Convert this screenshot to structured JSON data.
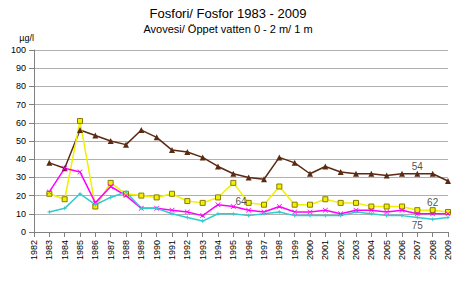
{
  "chart_data": {
    "type": "line",
    "title": "Fosfori/ Fosfor 1983 - 2009",
    "subtitle": "Avovesi/ Öppet vatten 0 - 2 m/ 1 m",
    "y_label": "µg/l",
    "x": [
      1983,
      1984,
      1985,
      1986,
      1987,
      1988,
      1989,
      1990,
      1991,
      1992,
      1993,
      1994,
      1995,
      1996,
      1997,
      1998,
      1999,
      2000,
      2001,
      2002,
      2003,
      2004,
      2005,
      2006,
      2007,
      2008,
      2009
    ],
    "xlim": [
      1982,
      2009
    ],
    "xticks": [
      1982,
      1983,
      1984,
      1985,
      1986,
      1987,
      1988,
      1989,
      1990,
      1991,
      1992,
      1993,
      1994,
      1995,
      1996,
      1997,
      1998,
      1999,
      2000,
      2001,
      2002,
      2003,
      2004,
      2005,
      2006,
      2007,
      2008,
      2009
    ],
    "ylim": [
      0,
      100
    ],
    "yticks": [
      0,
      10,
      20,
      30,
      40,
      50,
      60,
      70,
      80,
      90,
      100
    ],
    "grid": true,
    "series": [
      {
        "color": "#5a2a12",
        "marker": "triangle",
        "values": [
          38,
          35,
          56,
          53,
          50,
          48,
          56,
          52,
          45,
          44,
          41,
          36,
          32,
          30,
          29,
          41,
          38,
          32,
          36,
          33,
          32,
          32,
          31,
          32,
          32,
          32,
          28
        ]
      },
      {
        "color": "#f0f000",
        "marker": "square",
        "values": [
          21,
          18,
          61,
          14,
          27,
          21,
          20,
          19,
          21,
          17,
          16,
          19,
          27,
          16,
          15,
          25,
          15,
          15,
          18,
          16,
          16,
          14,
          14,
          14,
          12,
          12,
          11
        ]
      },
      {
        "color": "#ff00ff",
        "marker": "x",
        "values": [
          22,
          35,
          33,
          16,
          25,
          20,
          13,
          13,
          12,
          11,
          9,
          15,
          14,
          12,
          11,
          14,
          11,
          11,
          12,
          10,
          12,
          12,
          11,
          12,
          10,
          10,
          10
        ]
      },
      {
        "color": "#33cccc",
        "marker": "star",
        "values": [
          11,
          13,
          21,
          15,
          19,
          22,
          13,
          13,
          10,
          8,
          6,
          10,
          10,
          9,
          10,
          11,
          9,
          9,
          9,
          9,
          11,
          10,
          9,
          9,
          8,
          7,
          8
        ]
      }
    ],
    "annotations": [
      {
        "text": "54",
        "x": 2007,
        "y": 36
      },
      {
        "text": "62",
        "x": 2008,
        "y": 16
      },
      {
        "text": "64",
        "x": 1995.5,
        "y": 17
      },
      {
        "text": "75",
        "x": 2007,
        "y": 3.5
      }
    ]
  }
}
